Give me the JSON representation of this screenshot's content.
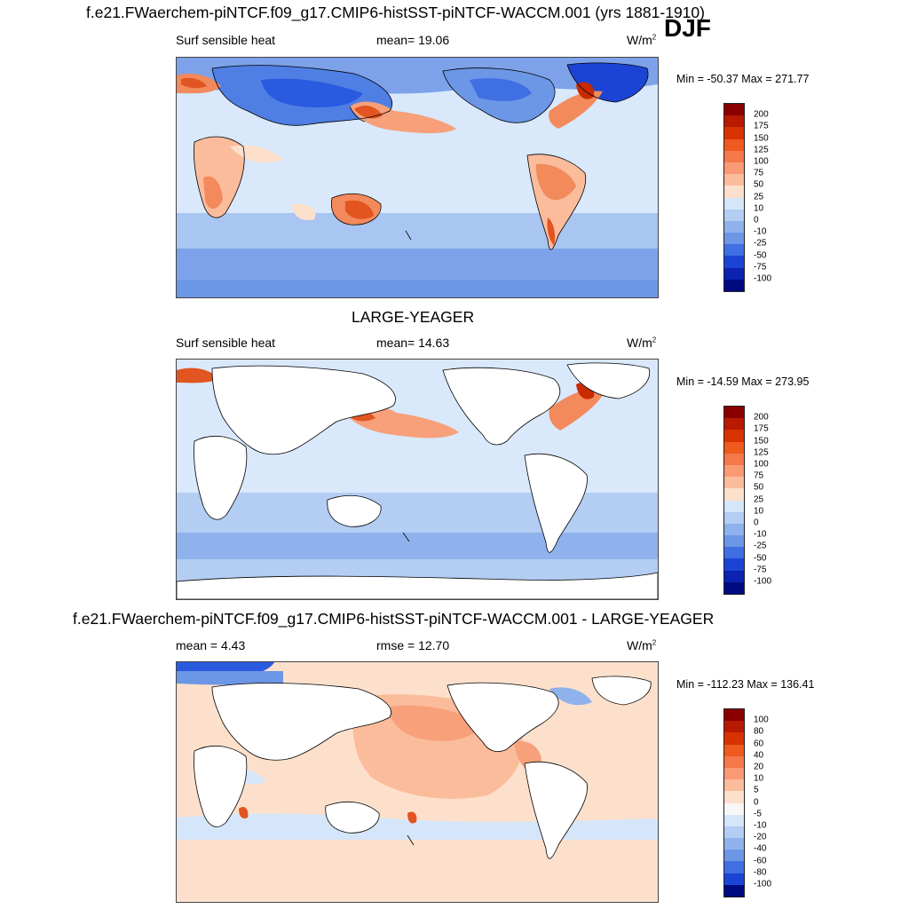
{
  "header": {
    "top_title": "f.e21.FWaerchem-piNTCF.f09_g17.CMIP6-histSST-piNTCF-WACCM.001 (yrs 1881-1910)",
    "season": "DJF"
  },
  "panel1": {
    "variable": "Surf sensible heat",
    "stat": "mean=  19.06",
    "units_base": "W/m",
    "units_exp": "2",
    "minmax": "Min = -50.37 Max = 271.77"
  },
  "panel2": {
    "title": "LARGE-YEAGER",
    "variable": "Surf sensible heat",
    "stat": "mean=  14.63",
    "units_base": "W/m",
    "units_exp": "2",
    "minmax": "Min = -14.59 Max = 273.95"
  },
  "panel3": {
    "title": "f.e21.FWaerchem-piNTCF.f09_g17.CMIP6-histSST-piNTCF-WACCM.001 - LARGE-YEAGER",
    "stat_left": "mean =   4.43",
    "stat_mid": "rmse =  12.70",
    "units_base": "W/m",
    "units_exp": "2",
    "minmax": "Min = -112.23 Max = 136.41"
  },
  "colorbar_abs": {
    "labels": [
      "200",
      "175",
      "150",
      "125",
      "100",
      "75",
      "50",
      "25",
      "10",
      "0",
      "-10",
      "-25",
      "-50",
      "-75",
      "-100"
    ],
    "colors": [
      "#8a0000",
      "#b81a00",
      "#d83200",
      "#ef5a1e",
      "#f5784a",
      "#fa9a74",
      "#fbbc9c",
      "#fde0cc",
      "#d6e6fa",
      "#b3cdf3",
      "#8fb2ed",
      "#6c96e6",
      "#3f6fe2",
      "#1c44d4",
      "#0b23b0",
      "#000a80"
    ]
  },
  "colorbar_diff": {
    "labels": [
      "100",
      "80",
      "60",
      "40",
      "20",
      "10",
      "5",
      "0",
      "-5",
      "-10",
      "-20",
      "-40",
      "-60",
      "-80",
      "-100"
    ],
    "colors": [
      "#8a0000",
      "#b81a00",
      "#d83200",
      "#ef5a1e",
      "#f5784a",
      "#fa9a74",
      "#fbbc9c",
      "#fde0cc",
      "#f7f7f7",
      "#d6e6fa",
      "#b3cdf3",
      "#8fb2ed",
      "#6c96e6",
      "#3f6fe2",
      "#1c44d4",
      "#000a80"
    ]
  },
  "palette": {
    "ocean_light": "#d9e8fb",
    "ocean_mid": "#a9c5f1",
    "ocean_deep": "#7da2e9",
    "warm_light": "#fde0cc",
    "warm_mid": "#f7a07a",
    "warm_strong": "#e25420",
    "cold_strong": "#2a5ae0",
    "land_white": "#ffffff"
  }
}
